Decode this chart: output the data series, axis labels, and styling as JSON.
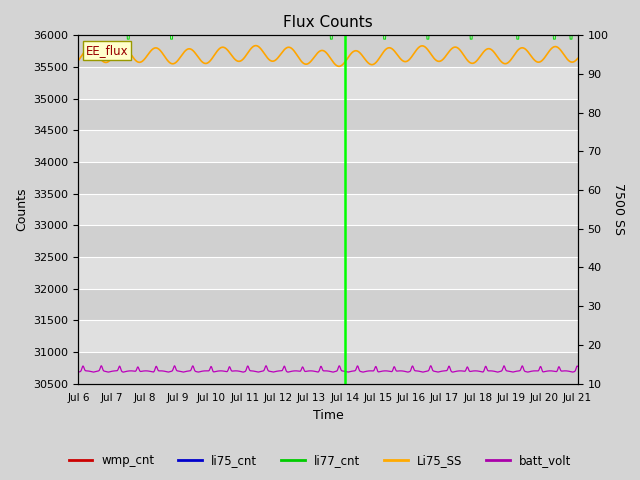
{
  "title": "Flux Counts",
  "ylabel_left": "Counts",
  "ylabel_right": "7500 SS",
  "xlabel": "Time",
  "ylim_left": [
    30500,
    36000
  ],
  "ylim_right": [
    10,
    100
  ],
  "xtick_labels": [
    "Jul 6",
    "Jul 7",
    "Jul 8",
    "Jul 9",
    "Jul 10",
    "Jul 11",
    "Jul 12",
    "Jul 13",
    "Jul 14",
    "Jul 15",
    "Jul 16",
    "Jul 17",
    "Jul 18",
    "Jul 19",
    "Jul 20",
    "Jul 21"
  ],
  "yticks_left": [
    30500,
    31000,
    31500,
    32000,
    32500,
    33000,
    33500,
    34000,
    34500,
    35000,
    35500,
    36000
  ],
  "yticks_right": [
    10,
    20,
    30,
    40,
    50,
    60,
    70,
    80,
    90,
    100
  ],
  "bg_color": "#d4d4d4",
  "plot_bg_color": "#e0e0e0",
  "grid_color": "#ffffff",
  "vline_x": 8.0,
  "vline_color": "#00ff00",
  "orange_mean": 35680,
  "orange_amp": 120,
  "orange_period": 1.0,
  "purple_mean": 30680,
  "purple_amp": 120,
  "purple_period": 0.55,
  "num_days": 15,
  "figsize": [
    6.4,
    4.8
  ],
  "dpi": 100
}
